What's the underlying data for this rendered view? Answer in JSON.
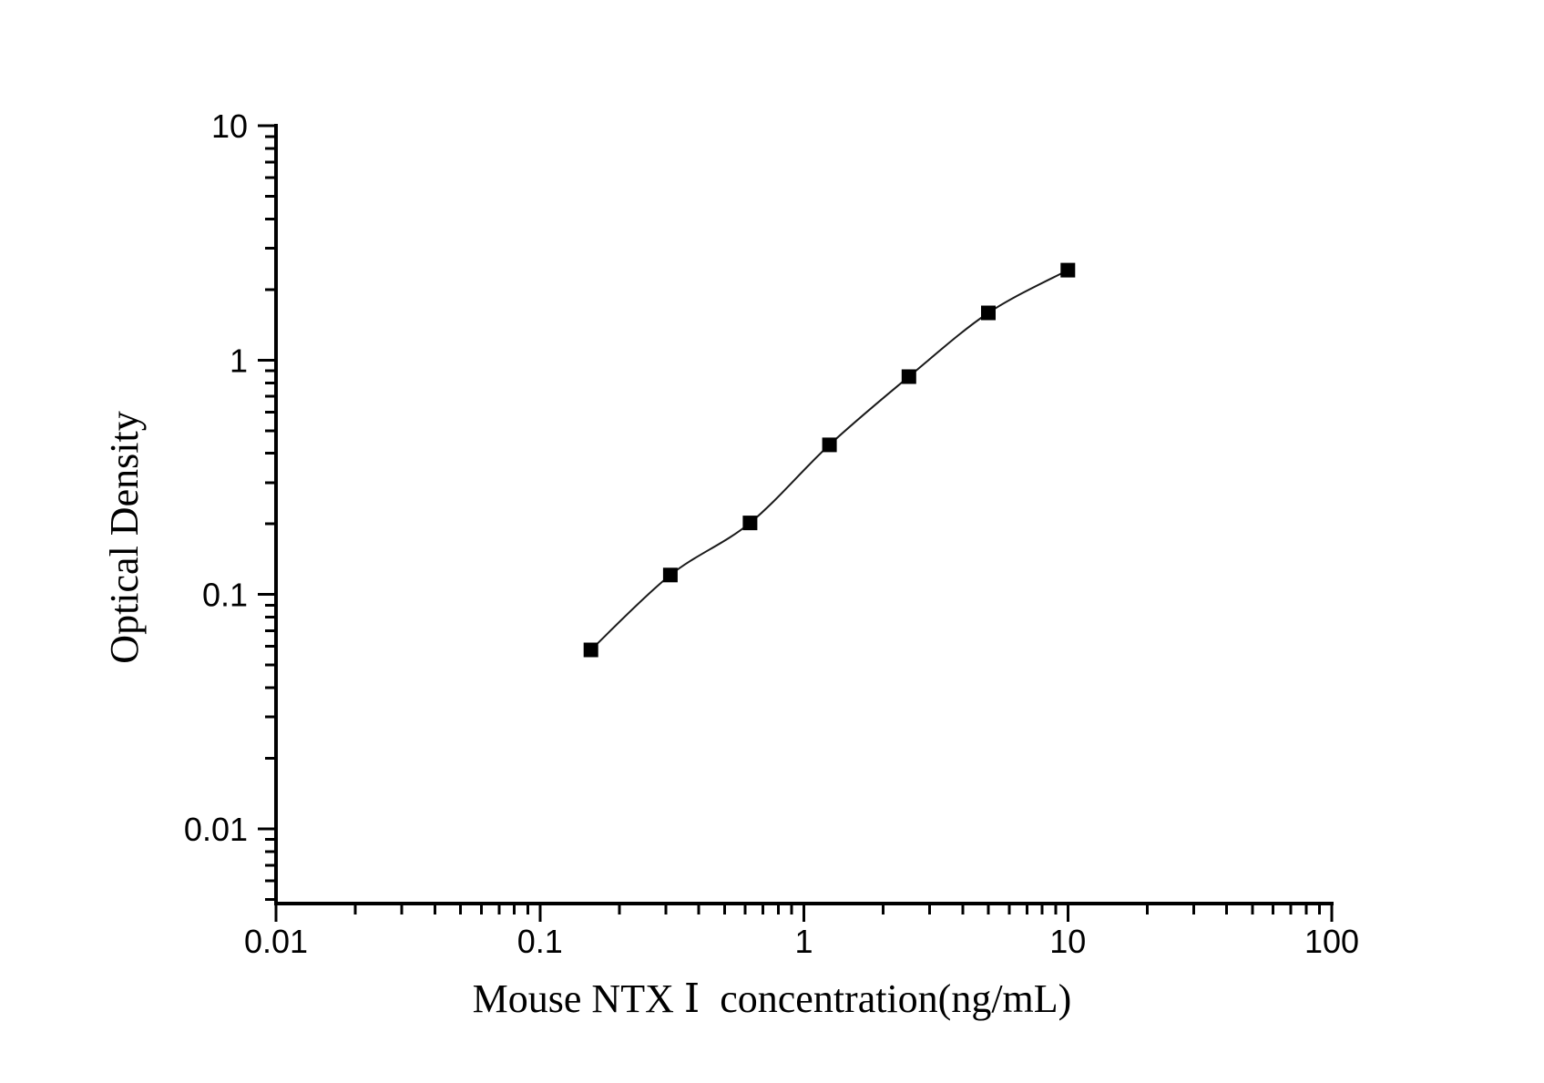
{
  "figure": {
    "background": "#ffffff"
  },
  "chart_data": {
    "type": "scatter",
    "title": "",
    "xlabel": "Mouse NTX Ⅰ  concentration(ng/mL)",
    "ylabel": "Optical Density",
    "x_scale": "log",
    "y_scale": "log",
    "xlim": [
      0.01,
      100
    ],
    "ylim": [
      0.0048,
      10
    ],
    "x": [
      0.156,
      0.312,
      0.625,
      1.25,
      2.5,
      5,
      10
    ],
    "y": [
      0.058,
      0.121,
      0.202,
      0.435,
      0.85,
      1.59,
      2.42
    ],
    "x_ticks": [
      {
        "v": 0.01,
        "label": "0.01"
      },
      {
        "v": 0.1,
        "label": "0.1"
      },
      {
        "v": 1,
        "label": "1"
      },
      {
        "v": 10,
        "label": "10"
      },
      {
        "v": 100,
        "label": "100"
      }
    ],
    "y_ticks": [
      {
        "v": 10,
        "label": "10"
      },
      {
        "v": 1,
        "label": "1"
      },
      {
        "v": 0.1,
        "label": "0.1"
      },
      {
        "v": 0.01,
        "label": "0.01"
      }
    ],
    "marker": "filled-square",
    "grid": false,
    "legend": null,
    "colors": {
      "background": "#ffffff",
      "axis": "#000000",
      "tick_text": "#000000",
      "title_text": "#000000",
      "curve": "#1a1a1a",
      "marker": "#000000"
    }
  }
}
